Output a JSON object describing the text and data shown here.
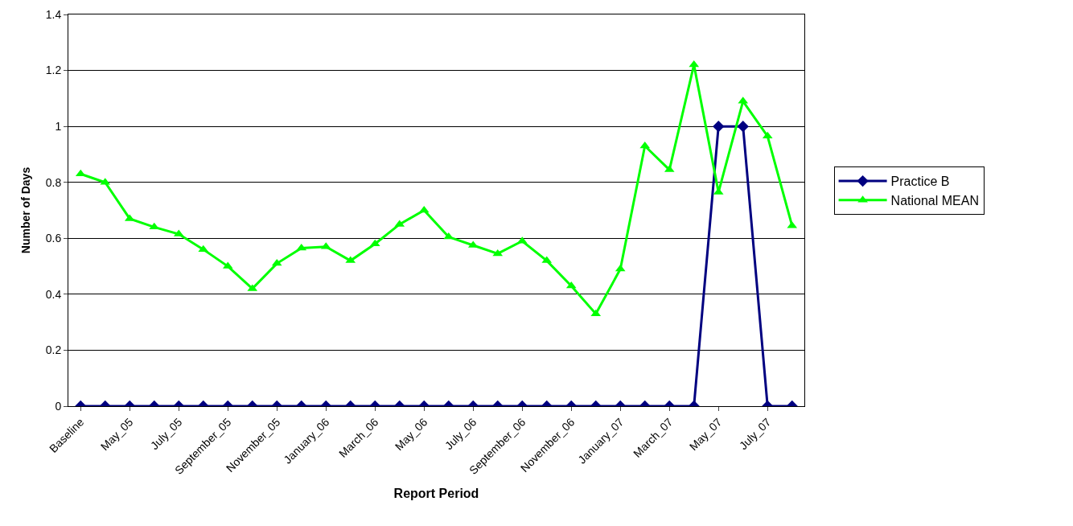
{
  "chart_data": {
    "type": "line",
    "xlabel": "Report Period",
    "ylabel": "Number of Days",
    "categories": [
      "Baseline",
      null,
      "May_05",
      null,
      "July_05",
      null,
      "September_05",
      null,
      "November_05",
      null,
      "January_06",
      null,
      "March_06",
      null,
      "May_06",
      null,
      "July_06",
      null,
      "September_06",
      null,
      "November_06",
      null,
      "January_07",
      null,
      "March_07",
      null,
      "May_07",
      null,
      "July_07",
      null
    ],
    "series": [
      {
        "name": "Practice B",
        "color": "#000080",
        "marker": "diamond",
        "values": [
          0,
          0,
          0,
          0,
          0,
          0,
          0,
          0,
          0,
          0,
          0,
          0,
          0,
          0,
          0,
          0,
          0,
          0,
          0,
          0,
          0,
          0,
          0,
          0,
          0,
          0,
          1,
          1,
          0,
          0
        ]
      },
      {
        "name": "National MEAN",
        "color": "#00ff00",
        "marker": "triangle",
        "values": [
          0.83,
          0.8,
          0.67,
          0.64,
          0.615,
          0.56,
          0.5,
          0.42,
          0.51,
          0.565,
          0.57,
          0.52,
          0.58,
          0.65,
          0.7,
          0.605,
          0.575,
          0.545,
          0.59,
          0.52,
          0.43,
          0.33,
          0.49,
          0.93,
          0.845,
          1.22,
          0.765,
          1.09,
          0.965,
          0.645
        ]
      }
    ],
    "ylim": [
      0,
      1.4
    ],
    "yticks": [
      0,
      0.2,
      0.4,
      0.6,
      0.8,
      1,
      1.2,
      1.4
    ],
    "grid": "y",
    "legend": "right",
    "line_style": "solid"
  }
}
